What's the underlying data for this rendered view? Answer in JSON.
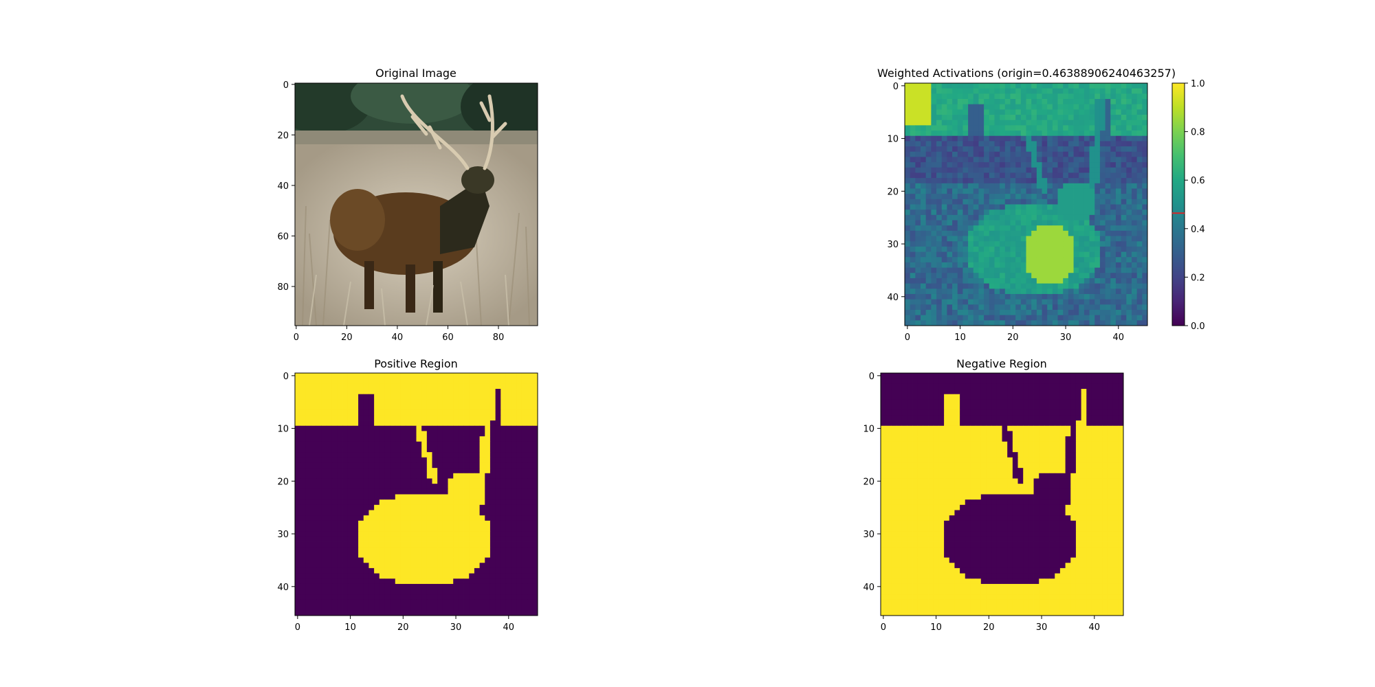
{
  "chart_data": [
    {
      "type": "image",
      "title": "Original Image",
      "xticks": [
        "0",
        "20",
        "40",
        "60",
        "80"
      ],
      "yticks": [
        "0",
        "20",
        "40",
        "60",
        "80"
      ],
      "xlim": [
        -0.5,
        95.5
      ],
      "ylim": [
        95.5,
        -0.5
      ],
      "content": "photograph of a stag (red deer) standing in tall dry grass with trees behind"
    },
    {
      "type": "heatmap",
      "title": "Weighted Activations (origin=0.46388906240463257)",
      "xticks": [
        "0",
        "10",
        "20",
        "30",
        "40"
      ],
      "yticks": [
        "0",
        "10",
        "20",
        "30",
        "40"
      ],
      "xlim": [
        -0.5,
        45.5
      ],
      "ylim": [
        45.5,
        -0.5
      ],
      "colormap": "viridis",
      "colorbar": {
        "ticks": [
          "0.0",
          "0.2",
          "0.4",
          "0.6",
          "0.8",
          "1.0"
        ],
        "range": [
          0,
          1
        ],
        "marker_value": 0.46388906240463257,
        "marker_color": "#d62728"
      }
    },
    {
      "type": "heatmap",
      "title": "Positive Region",
      "xticks": [
        "0",
        "10",
        "20",
        "30",
        "40"
      ],
      "yticks": [
        "0",
        "10",
        "20",
        "30",
        "40"
      ],
      "xlim": [
        -0.5,
        45.5
      ],
      "ylim": [
        45.5,
        -0.5
      ],
      "colormap": "viridis binary (0 = #440154, 1 = #fde725)",
      "mask_rule": "1 where weighted activation > origin"
    },
    {
      "type": "heatmap",
      "title": "Negative Region",
      "xticks": [
        "0",
        "10",
        "20",
        "30",
        "40"
      ],
      "yticks": [
        "0",
        "10",
        "20",
        "30",
        "40"
      ],
      "xlim": [
        -0.5,
        45.5
      ],
      "ylim": [
        45.5,
        -0.5
      ],
      "colormap": "viridis binary (0 = #440154, 1 = #fde725)",
      "mask_rule": "1 where weighted activation <= origin"
    }
  ]
}
